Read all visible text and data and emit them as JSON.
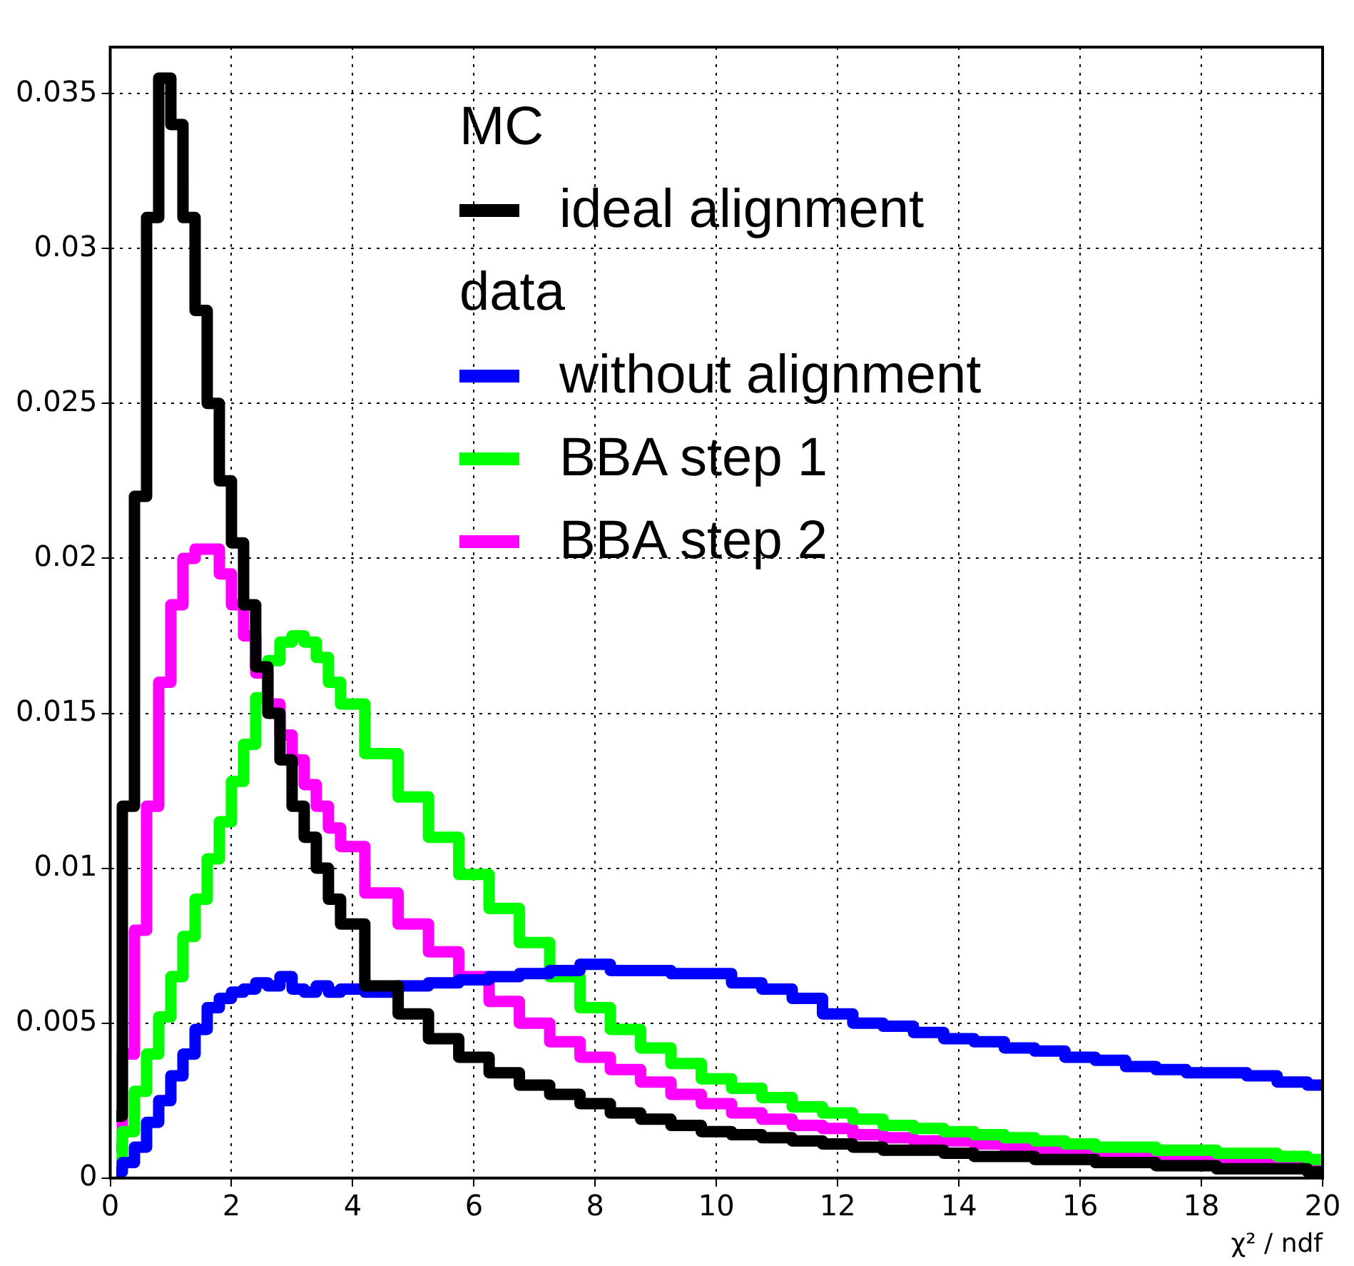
{
  "chart_data": {
    "type": "step",
    "xlabel": "χ² / ndf",
    "annotations": [
      "MC",
      "data"
    ],
    "x": [
      0.1,
      0.3,
      0.5,
      0.7,
      0.9,
      1.1,
      1.3,
      1.5,
      1.7,
      1.9,
      2.1,
      2.3,
      2.5,
      2.7,
      2.9,
      3.1,
      3.3,
      3.5,
      3.7,
      3.9,
      4.5,
      5,
      5.5,
      6,
      6.5,
      7,
      7.5,
      8,
      8.5,
      9,
      9.5,
      10,
      10.5,
      11,
      11.5,
      12,
      12.5,
      13,
      13.5,
      14,
      14.5,
      15,
      15.5,
      16,
      16.5,
      17,
      17.5,
      18,
      18.5,
      19,
      19.5,
      20
    ],
    "series": [
      {
        "name": "ideal alignment",
        "color": "#000000",
        "values": [
          0.002,
          0.012,
          0.022,
          0.031,
          0.0355,
          0.034,
          0.031,
          0.028,
          0.025,
          0.0225,
          0.0205,
          0.0185,
          0.0165,
          0.015,
          0.0135,
          0.012,
          0.011,
          0.01,
          0.009,
          0.0082,
          0.0062,
          0.0053,
          0.0045,
          0.0039,
          0.0034,
          0.003,
          0.0027,
          0.0024,
          0.0021,
          0.0019,
          0.0017,
          0.0015,
          0.0014,
          0.0013,
          0.0012,
          0.0011,
          0.001,
          0.0009,
          0.0009,
          0.0008,
          0.0007,
          0.0007,
          0.0006,
          0.0006,
          0.0005,
          0.0005,
          0.0004,
          0.0004,
          0.0003,
          0.0003,
          0.0003,
          0.0002
        ]
      },
      {
        "name": "without alignment",
        "color": "#0000ff",
        "values": [
          0.0002,
          0.0005,
          0.001,
          0.0018,
          0.0025,
          0.0033,
          0.004,
          0.0048,
          0.0055,
          0.0058,
          0.006,
          0.0061,
          0.0063,
          0.0062,
          0.0065,
          0.0061,
          0.006,
          0.0062,
          0.006,
          0.0061,
          0.006,
          0.0062,
          0.0063,
          0.0064,
          0.0065,
          0.0066,
          0.0067,
          0.0069,
          0.0067,
          0.0067,
          0.0066,
          0.0066,
          0.0063,
          0.0061,
          0.0058,
          0.0053,
          0.005,
          0.0049,
          0.0047,
          0.0045,
          0.0044,
          0.0042,
          0.0041,
          0.0039,
          0.0038,
          0.0036,
          0.0035,
          0.0034,
          0.0034,
          0.0033,
          0.0031,
          0.003
        ]
      },
      {
        "name": "BBA step 1",
        "color": "#00ff00",
        "values": [
          0.0005,
          0.0015,
          0.0028,
          0.004,
          0.0052,
          0.0065,
          0.0078,
          0.009,
          0.0103,
          0.0115,
          0.0128,
          0.014,
          0.0155,
          0.0167,
          0.0173,
          0.0175,
          0.0173,
          0.0168,
          0.016,
          0.0153,
          0.0137,
          0.0123,
          0.011,
          0.0098,
          0.0087,
          0.0076,
          0.0065,
          0.0055,
          0.0048,
          0.0042,
          0.0037,
          0.0032,
          0.0029,
          0.0026,
          0.0023,
          0.0021,
          0.0019,
          0.0017,
          0.0016,
          0.0015,
          0.0014,
          0.0013,
          0.0012,
          0.0011,
          0.001,
          0.001,
          0.0009,
          0.0009,
          0.0008,
          0.0008,
          0.0007,
          0.0006
        ]
      },
      {
        "name": "BBA step 2",
        "color": "#ff00ff",
        "values": [
          0.001,
          0.004,
          0.008,
          0.012,
          0.016,
          0.0185,
          0.02,
          0.0203,
          0.0203,
          0.0195,
          0.0185,
          0.0175,
          0.0163,
          0.0153,
          0.0143,
          0.0135,
          0.0127,
          0.012,
          0.0113,
          0.0107,
          0.0092,
          0.0082,
          0.0073,
          0.0065,
          0.0057,
          0.005,
          0.0044,
          0.0039,
          0.0035,
          0.0031,
          0.0027,
          0.0024,
          0.0021,
          0.0019,
          0.0017,
          0.0016,
          0.0014,
          0.0013,
          0.0012,
          0.0012,
          0.0011,
          0.001,
          0.0009,
          0.0009,
          0.0008,
          0.0007,
          0.0007,
          0.0006,
          0.0006,
          0.0005,
          0.0005,
          0.0004
        ]
      }
    ],
    "xlim": [
      0,
      20
    ],
    "xticks": [
      0,
      2,
      4,
      6,
      8,
      10,
      12,
      14,
      16,
      18,
      20
    ],
    "ylim": [
      0,
      0.0365
    ],
    "yticks": [
      0,
      0.005,
      0.01,
      0.015,
      0.02,
      0.025,
      0.03,
      0.035
    ],
    "grid": true,
    "legend": "top right",
    "marker": "none",
    "line_style": "solid"
  }
}
